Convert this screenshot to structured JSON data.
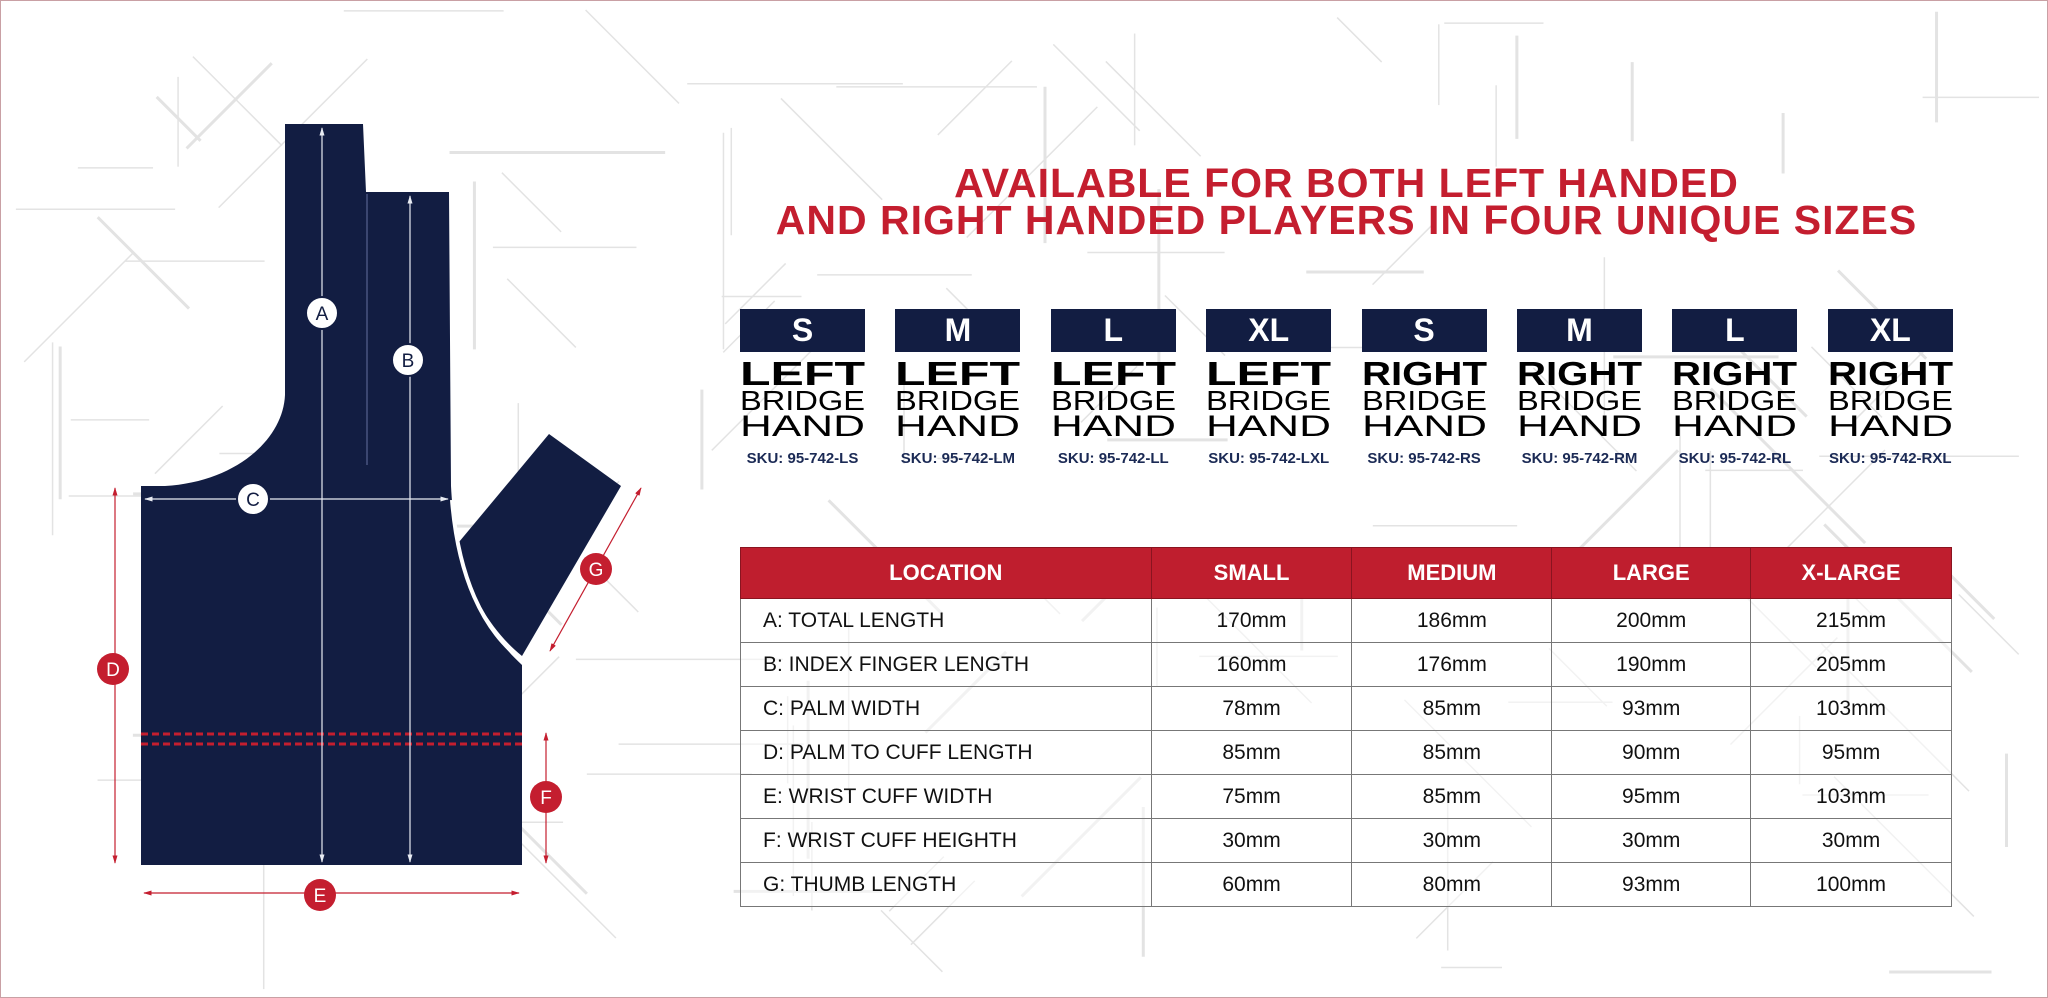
{
  "title": {
    "line1": "AVAILABLE FOR BOTH LEFT HANDED",
    "line2": "AND RIGHT HANDED PLAYERS IN FOUR UNIQUE SIZES"
  },
  "colors": {
    "navy": "#121d42",
    "red": "#bf1e2e"
  },
  "diagram": {
    "labels": {
      "A": "A",
      "B": "B",
      "C": "C",
      "D": "D",
      "E": "E",
      "F": "F",
      "G": "G"
    }
  },
  "products": [
    {
      "size": "S",
      "hand": "LEFT",
      "line2": "BRIDGE",
      "line3": "HAND",
      "sku": "SKU: 95-742-LS"
    },
    {
      "size": "M",
      "hand": "LEFT",
      "line2": "BRIDGE",
      "line3": "HAND",
      "sku": "SKU: 95-742-LM"
    },
    {
      "size": "L",
      "hand": "LEFT",
      "line2": "BRIDGE",
      "line3": "HAND",
      "sku": "SKU: 95-742-LL"
    },
    {
      "size": "XL",
      "hand": "LEFT",
      "line2": "BRIDGE",
      "line3": "HAND",
      "sku": "SKU: 95-742-LXL"
    },
    {
      "size": "S",
      "hand": "RIGHT",
      "line2": "BRIDGE",
      "line3": "HAND",
      "sku": "SKU: 95-742-RS"
    },
    {
      "size": "M",
      "hand": "RIGHT",
      "line2": "BRIDGE",
      "line3": "HAND",
      "sku": "SKU: 95-742-RM"
    },
    {
      "size": "L",
      "hand": "RIGHT",
      "line2": "BRIDGE",
      "line3": "HAND",
      "sku": "SKU: 95-742-RL"
    },
    {
      "size": "XL",
      "hand": "RIGHT",
      "line2": "BRIDGE",
      "line3": "HAND",
      "sku": "SKU: 95-742-RXL"
    }
  ],
  "size_table": {
    "headers": [
      "LOCATION",
      "SMALL",
      "MEDIUM",
      "LARGE",
      "X-LARGE"
    ],
    "rows": [
      [
        "A:  TOTAL LENGTH",
        "170mm",
        "186mm",
        "200mm",
        "215mm"
      ],
      [
        "B:  INDEX FINGER LENGTH",
        "160mm",
        "176mm",
        "190mm",
        "205mm"
      ],
      [
        "C:  PALM WIDTH",
        "78mm",
        "85mm",
        "93mm",
        "103mm"
      ],
      [
        "D:  PALM TO CUFF LENGTH",
        "85mm",
        "85mm",
        "90mm",
        "95mm"
      ],
      [
        "E:  WRIST CUFF WIDTH",
        "75mm",
        "85mm",
        "95mm",
        "103mm"
      ],
      [
        "F:  WRIST CUFF HEIGHTH",
        "30mm",
        "30mm",
        "30mm",
        "30mm"
      ],
      [
        "G:  THUMB LENGTH",
        "60mm",
        "80mm",
        "93mm",
        "100mm"
      ]
    ]
  }
}
